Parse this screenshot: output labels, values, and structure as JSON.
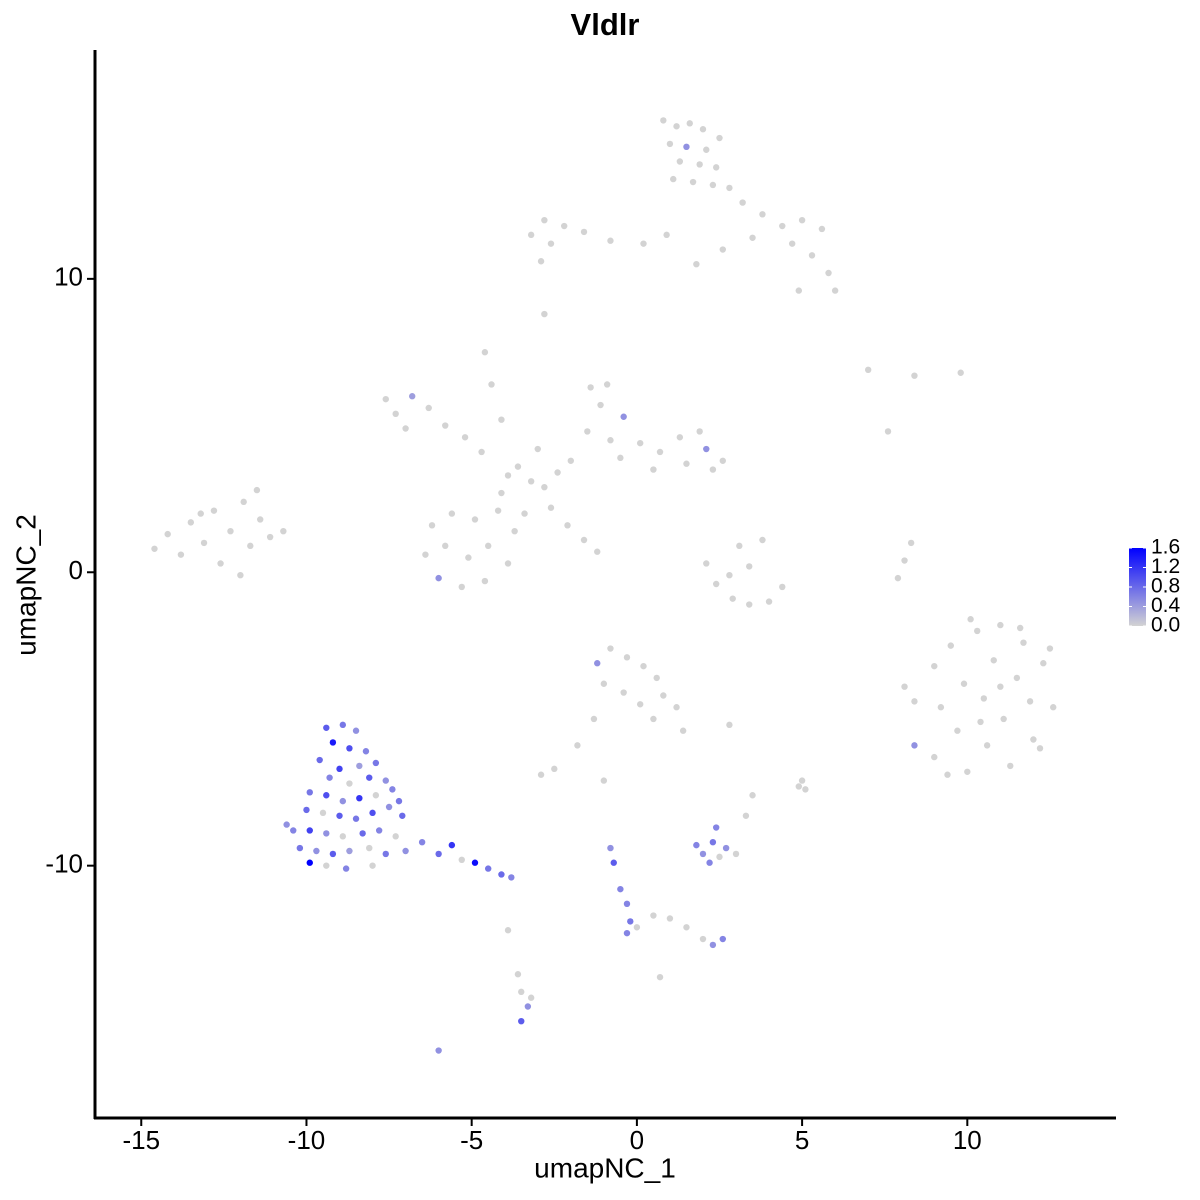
{
  "chart_data": {
    "type": "scatter",
    "title": "Vldlr",
    "x_label": "umapNC_1",
    "y_label": "umapNC_2",
    "xlim": [
      -16.4,
      14.5
    ],
    "ylim": [
      -18.6,
      17.8
    ],
    "xticks": [
      -15,
      -10,
      -5,
      0,
      5,
      10
    ],
    "yticks": [
      -10,
      0,
      10
    ],
    "grid": false,
    "colorbar": {
      "lim": [
        0,
        1.6
      ],
      "ticks": [
        {
          "value": 0,
          "label": "0.0"
        },
        0.4,
        0.8,
        1.2,
        1.6
      ],
      "low_color": "#d3d3d3",
      "high_color": "#0000ff"
    },
    "x": [
      0.8,
      1.2,
      1.6,
      2.0,
      1.0,
      1.5,
      2.1,
      2.5,
      1.3,
      1.9,
      2.4,
      1.1,
      1.7,
      2.3,
      2.8,
      3.2,
      3.8,
      4.4,
      5.0,
      5.6,
      4.7,
      5.3,
      5.8,
      6.0,
      4.9,
      3.5,
      2.6,
      1.8,
      0.9,
      0.2,
      -0.8,
      -1.6,
      -2.2,
      -2.8,
      -3.2,
      -2.6,
      -2.9,
      -2.8,
      -7.6,
      -7.3,
      -6.8,
      -6.3,
      -5.8,
      -5.2,
      -7.0,
      -4.7,
      -4.6,
      -4.4,
      -4.1,
      -3.6,
      -3.2,
      -2.8,
      -3.9,
      -2.4,
      -3.0,
      -2.0,
      -1.4,
      -0.9,
      -1.1,
      -0.4,
      -1.5,
      -0.8,
      0.1,
      0.7,
      1.3,
      1.9,
      2.1,
      2.6,
      2.3,
      1.5,
      0.5,
      -0.5,
      -6.2,
      -5.6,
      -4.9,
      -4.2,
      -3.7,
      -6.4,
      -5.8,
      -5.1,
      -4.5,
      -3.9,
      -6.0,
      -5.3,
      -4.6,
      -4.1,
      -3.4,
      -2.6,
      -2.1,
      -1.6,
      -1.2,
      -14.6,
      -14.2,
      -13.8,
      -13.5,
      -13.1,
      -12.8,
      -12.6,
      -12.3,
      -11.9,
      -11.7,
      -11.4,
      -11.1,
      -10.7,
      -12.0,
      -13.2,
      -11.5,
      2.1,
      2.4,
      2.9,
      3.4,
      4.0,
      4.4,
      3.1,
      3.4,
      3.8,
      2.8,
      7.9,
      8.1,
      8.3,
      9.8,
      8.4,
      7.0,
      7.6,
      8.4,
      8.1,
      8.4,
      9.0,
      9.2,
      9.0,
      9.5,
      9.7,
      9.9,
      10.0,
      10.3,
      10.5,
      10.6,
      10.8,
      11.0,
      11.1,
      11.3,
      11.5,
      11.7,
      11.9,
      12.0,
      12.3,
      12.5,
      12.6,
      12.2,
      9.4,
      10.1,
      11.6,
      10.4,
      11.0,
      -1.2,
      -0.8,
      -0.3,
      0.2,
      0.6,
      -1.0,
      -0.4,
      0.1,
      0.8,
      1.2,
      1.4,
      0.5,
      -1.3,
      -1.8,
      -2.5,
      -2.9,
      2.8,
      5.0,
      5.1,
      4.9,
      -1.0,
      -9.4,
      -8.9,
      -8.5,
      -9.2,
      -8.7,
      -8.2,
      -9.6,
      -9.0,
      -8.4,
      -7.9,
      -9.3,
      -8.7,
      -8.1,
      -7.6,
      -9.9,
      -9.4,
      -8.9,
      -8.4,
      -7.9,
      -7.4,
      -10.0,
      -9.5,
      -9.0,
      -8.5,
      -8.0,
      -7.5,
      -7.1,
      -10.4,
      -9.9,
      -9.4,
      -8.9,
      -8.3,
      -7.8,
      -7.3,
      -10.2,
      -9.7,
      -9.2,
      -8.7,
      -8.1,
      -7.6,
      -9.9,
      -9.4,
      -8.8,
      -8.0,
      -7.0,
      -6.5,
      -6.0,
      -5.6,
      -5.3,
      -4.9,
      -4.5,
      -4.1,
      -3.8,
      -7.2,
      -10.6,
      1.8,
      2.0,
      2.3,
      2.5,
      2.4,
      2.7,
      3.0,
      2.2,
      3.3,
      3.5,
      -0.8,
      -0.7,
      -0.5,
      -0.3,
      -0.2,
      0.0,
      -0.3,
      0.5,
      1.0,
      1.5,
      2.0,
      2.3,
      2.6,
      0.7,
      -3.6,
      -3.5,
      -3.3,
      -3.2,
      -3.5,
      -3.9,
      -6.0
    ],
    "y": [
      15.4,
      15.2,
      15.3,
      15.1,
      14.6,
      14.5,
      14.4,
      14.8,
      14.0,
      13.9,
      13.8,
      13.4,
      13.3,
      13.2,
      13.1,
      12.6,
      12.2,
      11.8,
      12.0,
      11.7,
      11.2,
      10.8,
      10.2,
      9.6,
      9.6,
      11.4,
      11.0,
      10.5,
      11.5,
      11.2,
      11.3,
      11.6,
      11.8,
      12.0,
      11.5,
      11.2,
      10.6,
      8.8,
      5.9,
      5.4,
      6.0,
      5.6,
      5.0,
      4.6,
      4.9,
      4.1,
      7.5,
      6.4,
      5.2,
      3.6,
      3.1,
      2.9,
      3.3,
      3.4,
      4.2,
      3.8,
      6.3,
      6.4,
      5.7,
      5.3,
      4.8,
      4.5,
      4.4,
      4.1,
      4.6,
      4.8,
      4.2,
      3.8,
      3.5,
      3.7,
      3.5,
      3.9,
      1.6,
      2.0,
      1.8,
      2.1,
      1.4,
      0.6,
      0.9,
      0.5,
      0.9,
      0.3,
      -0.2,
      -0.5,
      -0.3,
      2.7,
      2.0,
      2.2,
      1.6,
      1.1,
      0.7,
      0.8,
      1.3,
      0.6,
      1.7,
      1.0,
      2.1,
      0.3,
      1.4,
      2.4,
      0.9,
      1.8,
      1.2,
      1.4,
      -0.1,
      2.0,
      2.8,
      0.3,
      -0.4,
      -0.9,
      -1.1,
      -1.0,
      -0.5,
      0.9,
      0.2,
      1.1,
      -0.1,
      -0.2,
      0.4,
      1.0,
      6.8,
      6.7,
      6.9,
      4.8,
      -4.4,
      -3.9,
      -5.9,
      -3.2,
      -4.6,
      -6.3,
      -2.5,
      -5.4,
      -3.8,
      -6.8,
      -2.0,
      -4.3,
      -5.9,
      -3.0,
      -1.8,
      -5.0,
      -6.6,
      -3.6,
      -2.4,
      -4.4,
      -5.7,
      -3.1,
      -2.6,
      -4.6,
      -6.0,
      -6.9,
      -1.6,
      -1.9,
      -5.1,
      -3.9,
      -3.1,
      -2.6,
      -2.9,
      -3.2,
      -3.6,
      -3.8,
      -4.1,
      -4.5,
      -4.2,
      -4.6,
      -5.4,
      -5.0,
      -5.0,
      -5.9,
      -6.7,
      -6.9,
      -5.2,
      -7.1,
      -7.4,
      -7.3,
      -7.1,
      -5.3,
      -5.2,
      -5.4,
      -5.8,
      -6.0,
      -6.1,
      -6.4,
      -6.7,
      -6.6,
      -6.5,
      -7.0,
      -7.2,
      -7.0,
      -7.1,
      -7.5,
      -7.6,
      -7.8,
      -7.7,
      -7.6,
      -7.4,
      -8.1,
      -8.2,
      -8.3,
      -8.4,
      -8.2,
      -8.0,
      -8.3,
      -8.8,
      -8.8,
      -8.9,
      -9.0,
      -8.9,
      -8.8,
      -9.0,
      -9.4,
      -9.5,
      -9.6,
      -9.5,
      -9.4,
      -9.6,
      -9.9,
      -10.0,
      -10.1,
      -10.0,
      -9.5,
      -9.2,
      -9.6,
      -9.3,
      -9.8,
      -9.9,
      -10.1,
      -10.3,
      -10.4,
      -7.8,
      -8.6,
      -9.3,
      -9.6,
      -9.2,
      -9.7,
      -8.7,
      -9.4,
      -9.6,
      -9.9,
      -8.3,
      -7.6,
      -9.4,
      -9.9,
      -10.8,
      -11.3,
      -11.9,
      -12.1,
      -12.3,
      -11.7,
      -11.8,
      -12.1,
      -12.5,
      -12.7,
      -12.5,
      -13.8,
      -13.7,
      -14.3,
      -14.8,
      -14.5,
      -15.3,
      -12.2,
      -16.3
    ],
    "values": [
      0,
      0,
      0,
      0,
      0,
      0.5,
      0,
      0,
      0,
      0,
      0,
      0,
      0,
      0,
      0,
      0,
      0,
      0,
      0,
      0,
      0,
      0,
      0,
      0,
      0,
      0,
      0,
      0,
      0,
      0,
      0,
      0,
      0,
      0,
      0,
      0,
      0,
      0,
      0,
      0,
      0.4,
      0,
      0,
      0,
      0,
      0,
      0,
      0,
      0,
      0,
      0,
      0,
      0,
      0,
      0,
      0,
      0,
      0,
      0,
      0.5,
      0,
      0,
      0,
      0,
      0,
      0,
      0.5,
      0,
      0,
      0,
      0,
      0,
      0,
      0,
      0,
      0,
      0,
      0,
      0,
      0,
      0,
      0,
      0.5,
      0,
      0,
      0,
      0,
      0,
      0,
      0,
      0,
      0,
      0,
      0,
      0,
      0,
      0,
      0,
      0,
      0,
      0,
      0,
      0,
      0,
      0,
      0,
      0,
      0,
      0,
      0,
      0,
      0,
      0,
      0,
      0,
      0,
      0,
      0,
      0,
      0,
      0,
      0,
      0,
      0,
      0,
      0,
      0.5,
      0,
      0,
      0,
      0,
      0,
      0,
      0,
      0,
      0,
      0,
      0,
      0,
      0,
      0,
      0,
      0,
      0,
      0,
      0,
      0,
      0,
      0,
      0,
      0,
      0,
      0,
      0,
      0.5,
      0,
      0,
      0,
      0,
      0,
      0,
      0,
      0,
      0,
      0,
      0,
      0,
      0,
      0,
      0,
      0,
      0,
      0,
      0,
      0,
      0.9,
      0.7,
      0.5,
      1.4,
      1.0,
      0.6,
      0.8,
      1.1,
      0.4,
      0.7,
      0.6,
      0,
      0.9,
      0.5,
      0.7,
      1.0,
      0.5,
      1.2,
      0,
      0.6,
      0.8,
      0,
      0.9,
      0.7,
      1.0,
      0.5,
      0.8,
      0.6,
      1.1,
      0.5,
      0,
      0.8,
      0.6,
      0,
      0.7,
      0.5,
      0.9,
      0.4,
      0,
      0.7,
      1.6,
      0,
      0.6,
      0,
      0.5,
      0.6,
      0.8,
      1.2,
      0,
      1.5,
      0.7,
      0.8,
      0.6,
      0.7,
      0.5,
      0.6,
      0.5,
      0.7,
      0,
      0.6,
      0.5,
      0,
      0.6,
      0,
      0,
      0.5,
      0.9,
      0.6,
      0.6,
      0.7,
      0,
      0.6,
      0,
      0,
      0,
      0,
      0.5,
      0.6,
      0,
      0,
      0,
      0.5,
      0,
      0.9,
      0,
      0.5
    ]
  }
}
